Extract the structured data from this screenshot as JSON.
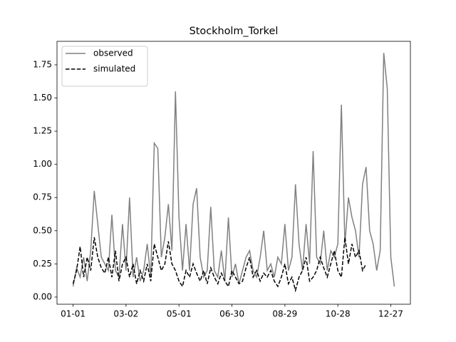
{
  "chart_data": {
    "type": "line",
    "title": "Stockholm_Torkel",
    "x": [
      0,
      4,
      8,
      12,
      16,
      20,
      24,
      28,
      32,
      36,
      40,
      44,
      48,
      52,
      56,
      60,
      64,
      68,
      72,
      76,
      80,
      84,
      88,
      92,
      96,
      100,
      104,
      108,
      112,
      116,
      120,
      124,
      128,
      132,
      136,
      140,
      144,
      148,
      152,
      156,
      160,
      164,
      168,
      172,
      176,
      180,
      184,
      188,
      192,
      196,
      200,
      204,
      208,
      212,
      216,
      220,
      224,
      228,
      232,
      236,
      240,
      244,
      248,
      252,
      256,
      260,
      264,
      268,
      272,
      276,
      280,
      284,
      288,
      292,
      296,
      300,
      304,
      308,
      312,
      316,
      320,
      324,
      328,
      332,
      336,
      340,
      344,
      348,
      352,
      356,
      360,
      364
    ],
    "series": [
      {
        "name": "observed",
        "color": "#808080",
        "linestyle": "solid",
        "values": [
          0.08,
          0.22,
          0.15,
          0.3,
          0.12,
          0.35,
          0.8,
          0.55,
          0.3,
          0.25,
          0.2,
          0.62,
          0.2,
          0.15,
          0.55,
          0.2,
          0.75,
          0.15,
          0.3,
          0.12,
          0.2,
          0.4,
          0.15,
          1.16,
          1.12,
          0.3,
          0.45,
          0.7,
          0.35,
          1.55,
          0.6,
          0.2,
          0.55,
          0.2,
          0.7,
          0.82,
          0.3,
          0.15,
          0.2,
          0.68,
          0.2,
          0.15,
          0.35,
          0.12,
          0.6,
          0.15,
          0.25,
          0.1,
          0.2,
          0.3,
          0.35,
          0.2,
          0.15,
          0.3,
          0.5,
          0.2,
          0.25,
          0.15,
          0.3,
          0.25,
          0.55,
          0.2,
          0.3,
          0.85,
          0.4,
          0.2,
          0.55,
          0.25,
          1.1,
          0.3,
          0.25,
          0.5,
          0.2,
          0.35,
          0.3,
          0.4,
          1.45,
          0.4,
          0.75,
          0.6,
          0.5,
          0.3,
          0.85,
          0.98,
          0.5,
          0.4,
          0.2,
          0.35,
          1.84,
          1.57,
          0.3,
          0.08
        ]
      },
      {
        "name": "simulated",
        "color": "#000000",
        "linestyle": "dashed",
        "values": [
          0.1,
          0.2,
          0.38,
          0.15,
          0.3,
          0.2,
          0.45,
          0.3,
          0.22,
          0.18,
          0.3,
          0.15,
          0.35,
          0.12,
          0.25,
          0.3,
          0.15,
          0.25,
          0.1,
          0.2,
          0.12,
          0.25,
          0.12,
          0.4,
          0.3,
          0.2,
          0.25,
          0.42,
          0.25,
          0.2,
          0.12,
          0.08,
          0.2,
          0.15,
          0.25,
          0.18,
          0.12,
          0.2,
          0.1,
          0.22,
          0.15,
          0.1,
          0.18,
          0.12,
          0.08,
          0.2,
          0.15,
          0.1,
          0.12,
          0.22,
          0.3,
          0.15,
          0.2,
          0.12,
          0.18,
          0.15,
          0.2,
          0.12,
          0.08,
          0.15,
          0.25,
          0.1,
          0.15,
          0.05,
          0.15,
          0.2,
          0.3,
          0.12,
          0.15,
          0.2,
          0.3,
          0.22,
          0.15,
          0.25,
          0.35,
          0.2,
          0.15,
          0.45,
          0.25,
          0.4,
          0.3,
          0.35,
          0.2,
          0.25,
          null,
          null,
          null,
          null,
          null,
          null,
          null,
          null
        ]
      }
    ],
    "xlim": [
      -18.2,
      382.2
    ],
    "xticks": [
      {
        "value": 0,
        "label": "01-01"
      },
      {
        "value": 60,
        "label": "03-02"
      },
      {
        "value": 120,
        "label": "05-01"
      },
      {
        "value": 180,
        "label": "06-30"
      },
      {
        "value": 240,
        "label": "08-29"
      },
      {
        "value": 300,
        "label": "10-28"
      },
      {
        "value": 360,
        "label": "12-27"
      }
    ],
    "ylim": [
      -0.054,
      1.927
    ],
    "yticks": [
      {
        "value": 0,
        "label": "0.00"
      },
      0.25,
      {
        "value": 0.5,
        "label": "0.50"
      },
      0.75,
      {
        "value": 1,
        "label": "1.00"
      },
      1.25,
      {
        "value": 1.5,
        "label": "1.50"
      },
      1.75
    ],
    "legend": "upper left"
  }
}
